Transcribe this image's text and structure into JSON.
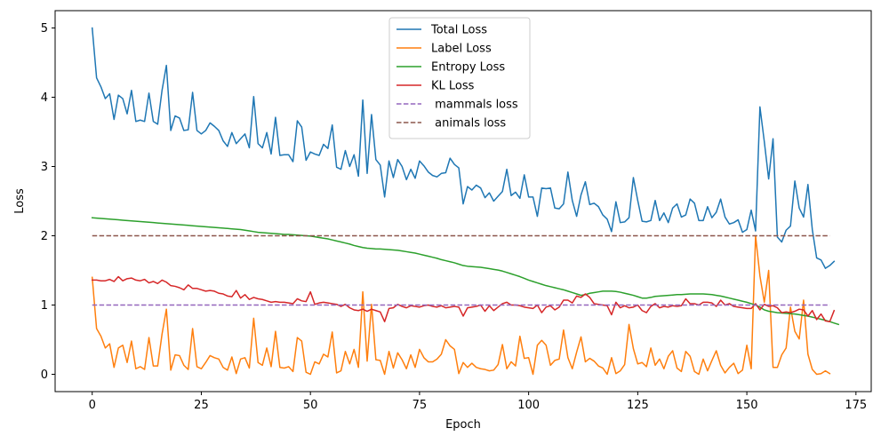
{
  "chart_data": {
    "type": "line",
    "title": "",
    "xlabel": "Epoch",
    "ylabel": "Loss",
    "xlim": [
      -8.5,
      178.5
    ],
    "ylim": [
      -0.25,
      5.25
    ],
    "xticks": [
      0,
      25,
      50,
      75,
      100,
      125,
      150,
      175
    ],
    "yticks": [
      0,
      1,
      2,
      3,
      4,
      5
    ],
    "grid": false,
    "legend_position": "upper-center",
    "series": [
      {
        "name": "Total Loss",
        "color": "#1f77b4",
        "dash": "solid",
        "x_start": 0,
        "values": [
          5.0,
          4.28,
          4.15,
          3.98,
          4.05,
          3.68,
          4.03,
          3.98,
          3.76,
          4.1,
          3.65,
          3.67,
          3.65,
          4.06,
          3.65,
          3.61,
          4.1,
          4.46,
          3.52,
          3.73,
          3.7,
          3.52,
          3.53,
          4.07,
          3.52,
          3.47,
          3.52,
          3.63,
          3.58,
          3.52,
          3.37,
          3.29,
          3.49,
          3.33,
          3.4,
          3.47,
          3.27,
          4.01,
          3.33,
          3.27,
          3.49,
          3.18,
          3.71,
          3.16,
          3.17,
          3.17,
          3.07,
          3.66,
          3.57,
          3.09,
          3.21,
          3.18,
          3.16,
          3.32,
          3.26,
          3.6,
          2.99,
          2.96,
          3.23,
          3.0,
          3.17,
          2.86,
          3.96,
          2.9,
          3.75,
          3.1,
          3.02,
          2.56,
          3.08,
          2.84,
          3.1,
          3.0,
          2.81,
          2.96,
          2.83,
          3.08,
          3.01,
          2.92,
          2.87,
          2.85,
          2.9,
          2.91,
          3.12,
          3.03,
          2.98,
          2.46,
          2.71,
          2.66,
          2.73,
          2.69,
          2.55,
          2.62,
          2.5,
          2.57,
          2.64,
          2.96,
          2.58,
          2.63,
          2.54,
          2.88,
          2.56,
          2.56,
          2.28,
          2.69,
          2.68,
          2.69,
          2.4,
          2.39,
          2.46,
          2.92,
          2.51,
          2.28,
          2.59,
          2.78,
          2.45,
          2.47,
          2.42,
          2.3,
          2.24,
          2.06,
          2.49,
          2.19,
          2.2,
          2.26,
          2.84,
          2.51,
          2.21,
          2.2,
          2.22,
          2.51,
          2.22,
          2.33,
          2.19,
          2.4,
          2.46,
          2.27,
          2.3,
          2.53,
          2.47,
          2.22,
          2.22,
          2.42,
          2.26,
          2.34,
          2.53,
          2.27,
          2.17,
          2.19,
          2.23,
          2.05,
          2.09,
          2.37,
          2.07,
          3.86,
          3.36,
          2.82,
          3.4,
          1.98,
          1.91,
          2.08,
          2.14,
          2.79,
          2.4,
          2.27,
          2.74,
          2.09,
          1.68,
          1.65,
          1.53,
          1.57,
          1.63
        ]
      },
      {
        "name": "Label Loss",
        "color": "#ff7f0e",
        "dash": "solid",
        "x_start": 0,
        "values": [
          1.4,
          0.66,
          0.55,
          0.38,
          0.44,
          0.1,
          0.38,
          0.42,
          0.17,
          0.48,
          0.08,
          0.11,
          0.07,
          0.53,
          0.12,
          0.12,
          0.58,
          0.94,
          0.06,
          0.28,
          0.27,
          0.13,
          0.07,
          0.66,
          0.11,
          0.08,
          0.17,
          0.27,
          0.24,
          0.22,
          0.1,
          0.06,
          0.25,
          0.01,
          0.22,
          0.24,
          0.09,
          0.81,
          0.17,
          0.13,
          0.38,
          0.11,
          0.62,
          0.1,
          0.09,
          0.11,
          0.04,
          0.53,
          0.48,
          0.03,
          0.0,
          0.18,
          0.15,
          0.29,
          0.25,
          0.61,
          0.02,
          0.05,
          0.33,
          0.15,
          0.36,
          0.1,
          1.19,
          0.19,
          1.01,
          0.21,
          0.2,
          0.0,
          0.33,
          0.09,
          0.31,
          0.21,
          0.08,
          0.28,
          0.1,
          0.36,
          0.24,
          0.18,
          0.18,
          0.22,
          0.29,
          0.5,
          0.41,
          0.36,
          0.01,
          0.17,
          0.1,
          0.16,
          0.1,
          0.08,
          0.07,
          0.05,
          0.06,
          0.14,
          0.43,
          0.08,
          0.18,
          0.12,
          0.55,
          0.23,
          0.24,
          0.0,
          0.42,
          0.49,
          0.42,
          0.13,
          0.2,
          0.22,
          0.64,
          0.24,
          0.08,
          0.32,
          0.54,
          0.18,
          0.23,
          0.19,
          0.12,
          0.09,
          0.0,
          0.24,
          0.01,
          0.05,
          0.14,
          0.72,
          0.37,
          0.15,
          0.17,
          0.11,
          0.38,
          0.13,
          0.22,
          0.08,
          0.26,
          0.34,
          0.09,
          0.04,
          0.33,
          0.26,
          0.04,
          0.0,
          0.22,
          0.05,
          0.2,
          0.34,
          0.13,
          0.02,
          0.1,
          0.16,
          0.01,
          0.06,
          0.42,
          0.08,
          2.0,
          1.42,
          1.04,
          1.5,
          0.1,
          0.1,
          0.28,
          0.38,
          0.97,
          0.62,
          0.51,
          1.07,
          0.29,
          0.07,
          0.0,
          0.01,
          0.05,
          0.01
        ]
      },
      {
        "name": "Entropy Loss",
        "color": "#2ca02c",
        "dash": "solid",
        "x_start": 0,
        "values": [
          2.26,
          2.255,
          2.25,
          2.245,
          2.24,
          2.235,
          2.23,
          2.225,
          2.22,
          2.215,
          2.21,
          2.205,
          2.2,
          2.195,
          2.19,
          2.185,
          2.18,
          2.175,
          2.17,
          2.165,
          2.16,
          2.155,
          2.15,
          2.145,
          2.14,
          2.135,
          2.13,
          2.125,
          2.12,
          2.115,
          2.11,
          2.105,
          2.1,
          2.095,
          2.09,
          2.08,
          2.07,
          2.06,
          2.05,
          2.045,
          2.04,
          2.035,
          2.03,
          2.025,
          2.02,
          2.02,
          2.015,
          2.01,
          2.005,
          2.0,
          1.995,
          1.985,
          1.975,
          1.965,
          1.955,
          1.94,
          1.925,
          1.91,
          1.895,
          1.88,
          1.86,
          1.845,
          1.83,
          1.82,
          1.815,
          1.81,
          1.81,
          1.805,
          1.8,
          1.795,
          1.79,
          1.78,
          1.77,
          1.76,
          1.75,
          1.735,
          1.72,
          1.705,
          1.69,
          1.675,
          1.655,
          1.64,
          1.625,
          1.61,
          1.59,
          1.57,
          1.56,
          1.555,
          1.55,
          1.545,
          1.535,
          1.525,
          1.515,
          1.505,
          1.49,
          1.47,
          1.45,
          1.43,
          1.41,
          1.385,
          1.36,
          1.34,
          1.32,
          1.3,
          1.28,
          1.265,
          1.25,
          1.235,
          1.22,
          1.2,
          1.18,
          1.16,
          1.14,
          1.15,
          1.17,
          1.18,
          1.19,
          1.2,
          1.2,
          1.2,
          1.195,
          1.185,
          1.17,
          1.155,
          1.14,
          1.12,
          1.1,
          1.1,
          1.11,
          1.125,
          1.13,
          1.135,
          1.14,
          1.145,
          1.15,
          1.15,
          1.155,
          1.16,
          1.16,
          1.16,
          1.16,
          1.155,
          1.15,
          1.14,
          1.13,
          1.115,
          1.1,
          1.085,
          1.07,
          1.055,
          1.04,
          1.02,
          1.0,
          0.97,
          0.93,
          0.91,
          0.9,
          0.89,
          0.885,
          0.88,
          0.875,
          0.87,
          0.86,
          0.85,
          0.84,
          0.825,
          0.81,
          0.795,
          0.78,
          0.76,
          0.74,
          0.72
        ]
      },
      {
        "name": "KL Loss",
        "color": "#d62728",
        "dash": "solid",
        "x_start": 0,
        "values": [
          1.36,
          1.36,
          1.35,
          1.35,
          1.37,
          1.34,
          1.41,
          1.35,
          1.38,
          1.39,
          1.36,
          1.35,
          1.37,
          1.32,
          1.34,
          1.31,
          1.36,
          1.33,
          1.28,
          1.27,
          1.25,
          1.22,
          1.29,
          1.24,
          1.24,
          1.22,
          1.2,
          1.21,
          1.2,
          1.17,
          1.16,
          1.13,
          1.12,
          1.21,
          1.1,
          1.15,
          1.08,
          1.11,
          1.09,
          1.08,
          1.06,
          1.04,
          1.05,
          1.04,
          1.04,
          1.03,
          1.02,
          1.09,
          1.06,
          1.05,
          1.19,
          1.01,
          1.03,
          1.04,
          1.03,
          1.02,
          1.01,
          0.98,
          1.01,
          0.96,
          0.93,
          0.92,
          0.94,
          0.91,
          0.94,
          0.92,
          0.9,
          0.76,
          0.95,
          0.96,
          1.01,
          0.98,
          0.96,
          0.99,
          0.98,
          0.97,
          0.99,
          1.0,
          0.98,
          0.97,
          0.99,
          0.96,
          0.97,
          0.98,
          0.97,
          0.84,
          0.96,
          0.97,
          0.98,
          1.0,
          0.91,
          0.99,
          0.92,
          0.97,
          1.02,
          1.04,
          1.0,
          1.0,
          0.99,
          0.97,
          0.96,
          0.95,
          1.0,
          0.89,
          0.97,
          0.99,
          0.93,
          0.97,
          1.07,
          1.07,
          1.03,
          1.13,
          1.11,
          1.16,
          1.11,
          1.02,
          1.01,
          1.0,
          0.99,
          0.86,
          1.04,
          0.96,
          0.99,
          0.96,
          0.97,
          1.0,
          0.92,
          0.89,
          0.98,
          1.02,
          0.96,
          0.98,
          0.97,
          0.99,
          0.98,
          0.99,
          1.09,
          1.02,
          1.02,
          1.0,
          1.04,
          1.04,
          1.03,
          0.98,
          1.07,
          1.0,
          1.02,
          0.98,
          0.97,
          0.96,
          0.95,
          0.95,
          1.02,
          0.93,
          1.01,
          0.98,
          0.99,
          0.96,
          0.89,
          0.9,
          0.89,
          0.91,
          0.94,
          0.93,
          0.84,
          0.92,
          0.79,
          0.87,
          0.77,
          0.76,
          0.92
        ]
      },
      {
        "name": " mammals loss",
        "color": "#9467bd",
        "dash": "dashed",
        "x": [
          0,
          169
        ],
        "values": [
          1.0,
          1.0
        ]
      },
      {
        "name": " animals loss",
        "color": "#8c564b",
        "dash": "dashed",
        "x": [
          0,
          169
        ],
        "values": [
          2.0,
          2.0
        ]
      }
    ]
  }
}
